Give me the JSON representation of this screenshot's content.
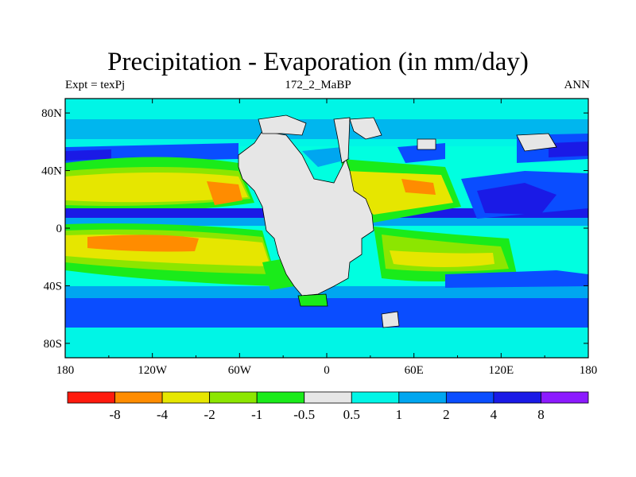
{
  "title": "Precipitation - Evaporation (in mm/day)",
  "subtitle_left": "Expt = texPj",
  "subtitle_center": "172_2_MaBP",
  "subtitle_right": "ANN",
  "map": {
    "type": "filled-contour-map",
    "projection": "cylindrical-equidistant",
    "lon_range": [
      -180,
      180
    ],
    "lat_range": [
      -90,
      90
    ],
    "lon_tick_labels": [
      {
        "lon": -180,
        "label": "180"
      },
      {
        "lon": -120,
        "label": "120W"
      },
      {
        "lon": -60,
        "label": "60W"
      },
      {
        "lon": 0,
        "label": "0"
      },
      {
        "lon": 60,
        "label": "60E"
      },
      {
        "lon": 120,
        "label": "120E"
      },
      {
        "lon": 180,
        "label": "180"
      }
    ],
    "lat_tick_labels": [
      {
        "lat": 80,
        "label": "80N"
      },
      {
        "lat": 40,
        "label": "40N"
      },
      {
        "lat": 0,
        "label": "0"
      },
      {
        "lat": -40,
        "label": "40S"
      },
      {
        "lat": -80,
        "label": "80S"
      }
    ],
    "continent_fill_color": "#e6e6e6",
    "ocean_background_color": "#00ffe0"
  },
  "colorbar": {
    "colors": [
      "#ff1a0d",
      "#ff8c00",
      "#e6e600",
      "#8ce600",
      "#1aeb1a",
      "#e6e6e6",
      "#00f5e6",
      "#00a6f0",
      "#0a4dff",
      "#1a1ae6",
      "#8c1aff"
    ],
    "labels": [
      "-8",
      "-4",
      "-2",
      "-1",
      "-0.5",
      "0.5",
      "1",
      "2",
      "4",
      "8"
    ]
  }
}
